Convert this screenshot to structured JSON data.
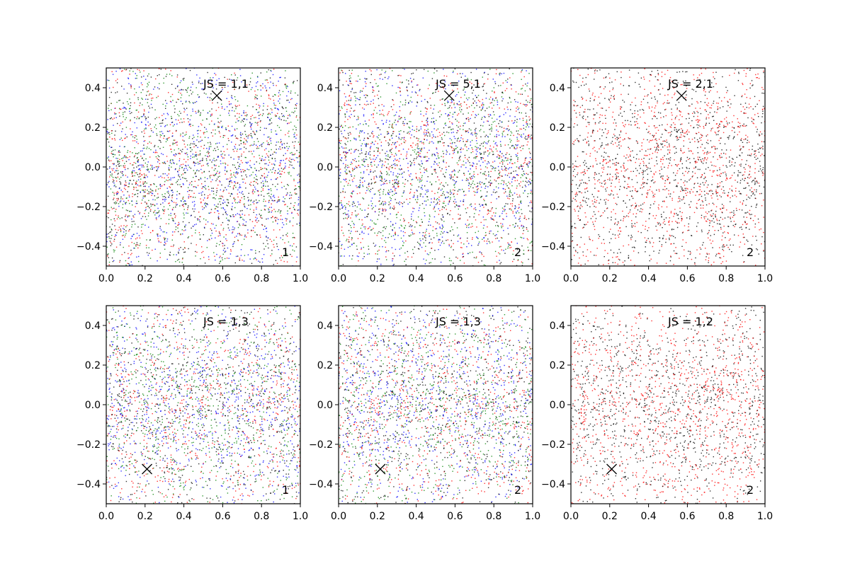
{
  "chart_data": [
    {
      "type": "scatter",
      "title": "JS = 1,1",
      "corner_label": "1",
      "xlim": [
        0.0,
        1.0
      ],
      "ylim": [
        -0.5,
        0.5
      ],
      "x_ticks": [
        "0.0",
        "0.2",
        "0.4",
        "0.6",
        "0.8",
        "1.0"
      ],
      "y_ticks": [
        "−0.4",
        "−0.2",
        "0.0",
        "0.2",
        "0.4"
      ],
      "series_colors": [
        "#0000ff",
        "#008000",
        "#ff0000",
        "#000000"
      ],
      "points_per_series": 800,
      "marker": {
        "x": 0.57,
        "y": 0.36,
        "symbol": "x",
        "color": "#000000"
      },
      "grid": false,
      "legend": "none"
    },
    {
      "type": "scatter",
      "title": "JS = 5,1",
      "corner_label": "2",
      "xlim": [
        0.0,
        1.0
      ],
      "ylim": [
        -0.5,
        0.5
      ],
      "x_ticks": [
        "0.0",
        "0.2",
        "0.4",
        "0.6",
        "0.8",
        "1.0"
      ],
      "y_ticks": [
        "−0.4",
        "−0.2",
        "0.0",
        "0.2",
        "0.4"
      ],
      "series_colors": [
        "#0000ff",
        "#008000",
        "#ff0000",
        "#000000"
      ],
      "points_per_series": 800,
      "marker": {
        "x": 0.57,
        "y": 0.36,
        "symbol": "x",
        "color": "#000000"
      },
      "grid": false,
      "legend": "none"
    },
    {
      "type": "scatter",
      "title": "JS = 2,1",
      "corner_label": "2",
      "xlim": [
        0.0,
        1.0
      ],
      "ylim": [
        -0.5,
        0.5
      ],
      "x_ticks": [
        "0.0",
        "0.2",
        "0.4",
        "0.6",
        "0.8",
        "1.0"
      ],
      "y_ticks": [
        "−0.4",
        "−0.2",
        "0.0",
        "0.2",
        "0.4"
      ],
      "series_colors": [
        "#ff0000",
        "#000000"
      ],
      "points_per_series": 1200,
      "marker": {
        "x": 0.57,
        "y": 0.36,
        "symbol": "x",
        "color": "#000000"
      },
      "grid": false,
      "legend": "none"
    },
    {
      "type": "scatter",
      "title": "JS = 1,3",
      "corner_label": "1",
      "xlim": [
        0.0,
        1.0
      ],
      "ylim": [
        -0.5,
        0.5
      ],
      "x_ticks": [
        "0.0",
        "0.2",
        "0.4",
        "0.6",
        "0.8",
        "1.0"
      ],
      "y_ticks": [
        "−0.4",
        "−0.2",
        "0.0",
        "0.2",
        "0.4"
      ],
      "series_colors": [
        "#0000ff",
        "#008000",
        "#ff0000",
        "#000000"
      ],
      "points_per_series": 800,
      "marker": {
        "x": 0.21,
        "y": -0.325,
        "symbol": "x",
        "color": "#000000"
      },
      "grid": false,
      "legend": "none"
    },
    {
      "type": "scatter",
      "title": "JS = 1,3",
      "corner_label": "2",
      "xlim": [
        0.0,
        1.0
      ],
      "ylim": [
        -0.5,
        0.5
      ],
      "x_ticks": [
        "0.0",
        "0.2",
        "0.4",
        "0.6",
        "0.8",
        "1.0"
      ],
      "y_ticks": [
        "−0.4",
        "−0.2",
        "0.0",
        "0.2",
        "0.4"
      ],
      "series_colors": [
        "#0000ff",
        "#008000",
        "#ff0000",
        "#000000"
      ],
      "points_per_series": 800,
      "marker": {
        "x": 0.215,
        "y": -0.325,
        "symbol": "x",
        "color": "#000000"
      },
      "grid": false,
      "legend": "none"
    },
    {
      "type": "scatter",
      "title": "JS = 1,2",
      "corner_label": "2",
      "xlim": [
        0.0,
        1.0
      ],
      "ylim": [
        -0.5,
        0.5
      ],
      "x_ticks": [
        "0.0",
        "0.2",
        "0.4",
        "0.6",
        "0.8",
        "1.0"
      ],
      "y_ticks": [
        "−0.4",
        "−0.2",
        "0.0",
        "0.2",
        "0.4"
      ],
      "series_colors": [
        "#ff0000",
        "#000000"
      ],
      "points_per_series": 1200,
      "marker": {
        "x": 0.21,
        "y": -0.325,
        "symbol": "x",
        "color": "#000000"
      },
      "grid": false,
      "legend": "none"
    }
  ]
}
